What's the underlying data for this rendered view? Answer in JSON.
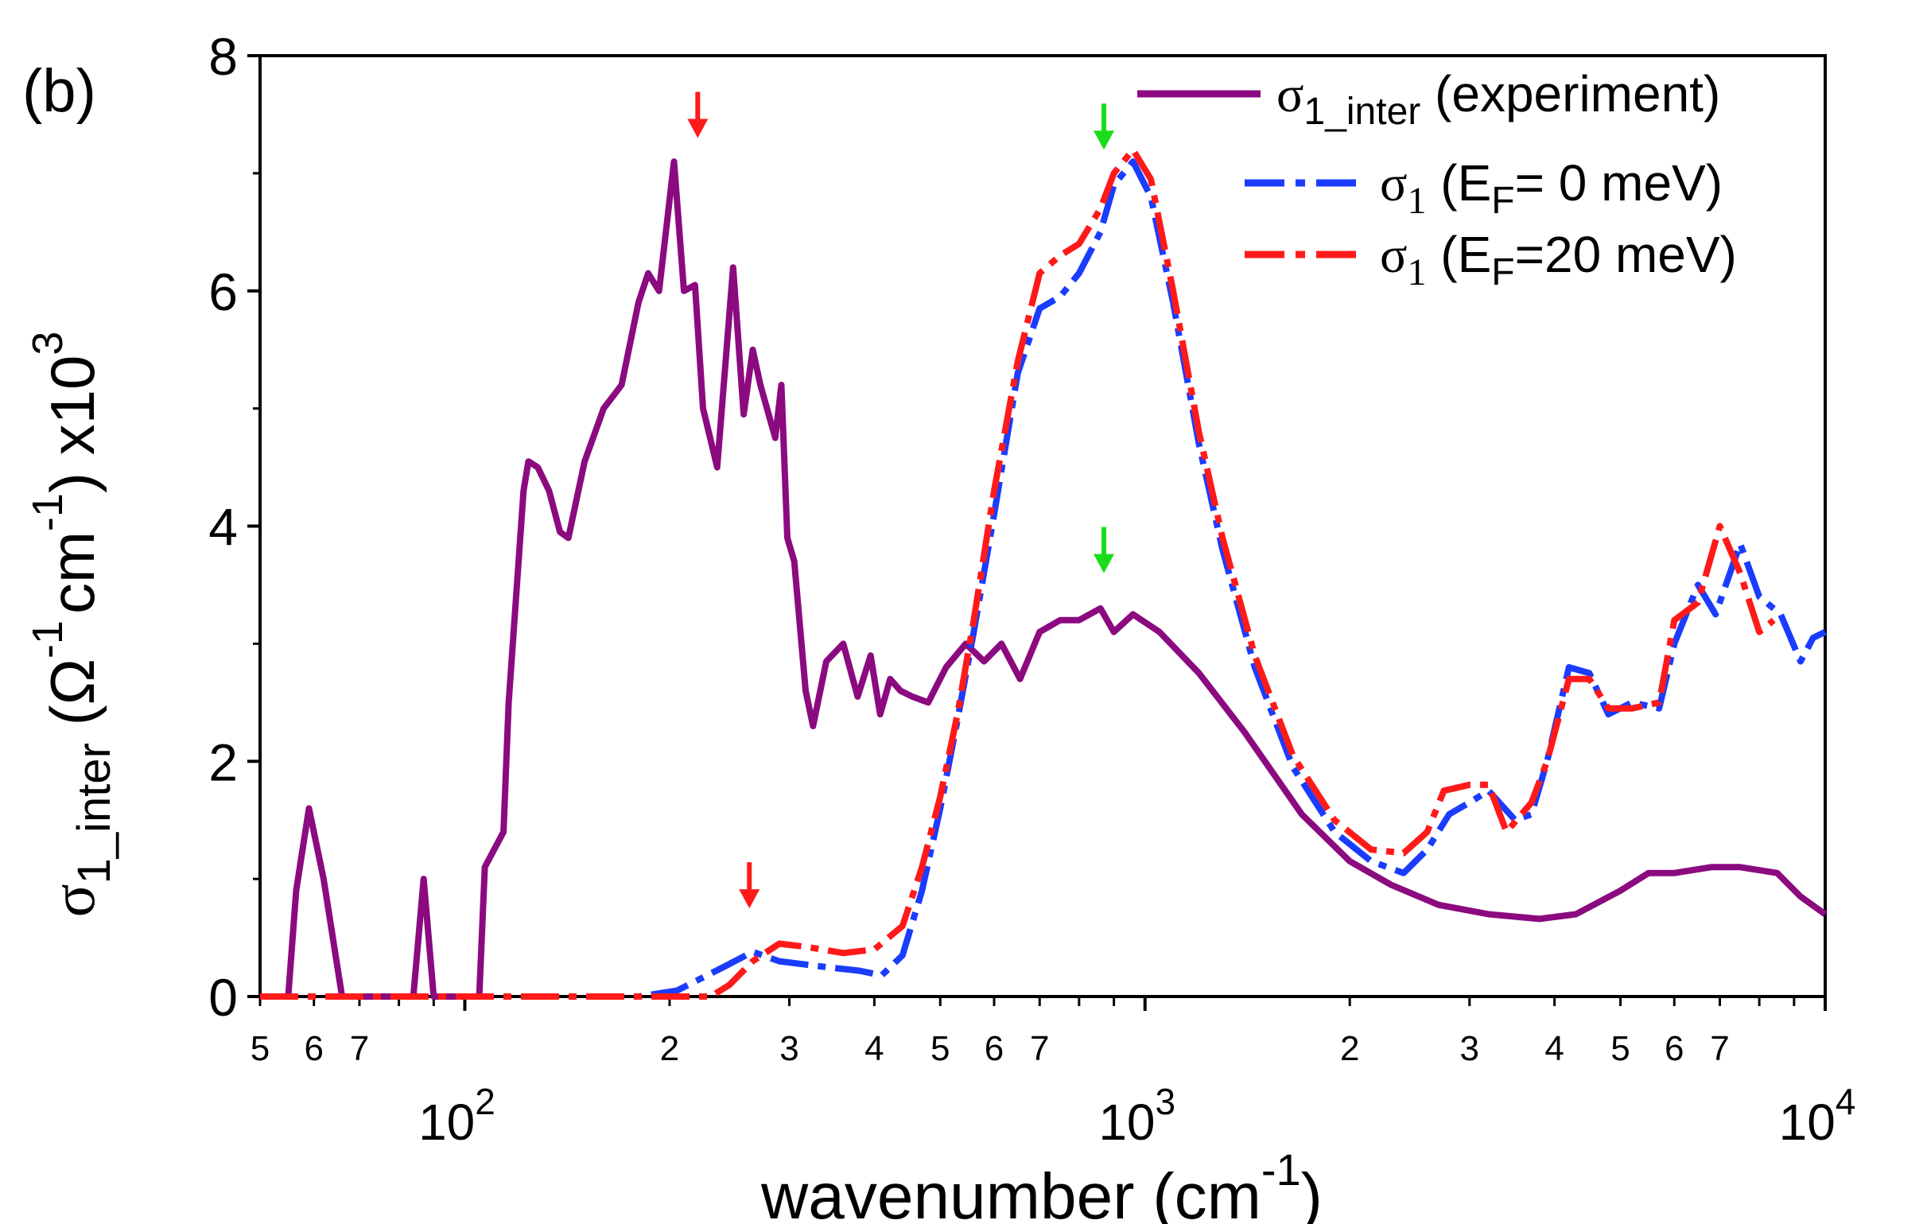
{
  "panel_label": "(b)",
  "chart_data": {
    "type": "line",
    "xscale": "log",
    "xlim": [
      50,
      10000
    ],
    "ylim": [
      0,
      8
    ],
    "grid": false,
    "legend_position": "top-right",
    "xlabel": {
      "main": "wavenumber (cm",
      "sup": "-1",
      "close": ")"
    },
    "ylabel": {
      "sigma": "σ",
      "sub": "1_inter",
      "open": " (Ω",
      "sup1": "-1",
      "cm": "cm",
      "sup2": "-1",
      "close": ") x10",
      "sup3": "3"
    },
    "yticks": [
      0,
      2,
      4,
      6,
      8
    ],
    "x_decade_ticks": [
      {
        "value": 100,
        "base": "10",
        "exp": "2"
      },
      {
        "value": 1000,
        "base": "10",
        "exp": "3"
      },
      {
        "value": 10000,
        "base": "10",
        "exp": "4"
      }
    ],
    "x_minor_ticks": [
      {
        "value": 50,
        "label": "5"
      },
      {
        "value": 60,
        "label": "6"
      },
      {
        "value": 70,
        "label": "7"
      },
      {
        "value": 80,
        "label": ""
      },
      {
        "value": 90,
        "label": ""
      },
      {
        "value": 200,
        "label": "2"
      },
      {
        "value": 300,
        "label": "3"
      },
      {
        "value": 400,
        "label": "4"
      },
      {
        "value": 500,
        "label": "5"
      },
      {
        "value": 600,
        "label": "6"
      },
      {
        "value": 700,
        "label": "7"
      },
      {
        "value": 800,
        "label": ""
      },
      {
        "value": 900,
        "label": ""
      },
      {
        "value": 2000,
        "label": "2"
      },
      {
        "value": 3000,
        "label": "3"
      },
      {
        "value": 4000,
        "label": "4"
      },
      {
        "value": 5000,
        "label": "5"
      },
      {
        "value": 6000,
        "label": "6"
      },
      {
        "value": 7000,
        "label": "7"
      },
      {
        "value": 8000,
        "label": ""
      },
      {
        "value": 9000,
        "label": ""
      }
    ],
    "legend": [
      {
        "key": "experiment",
        "sigma": "σ",
        "sub": "1_inter",
        "text": " (experiment)"
      },
      {
        "key": "ef0",
        "sigma": "σ",
        "sub": "1",
        "text1": " (E",
        "subF": "F",
        "text2": "=  0 meV)"
      },
      {
        "key": "ef20",
        "sigma": "σ",
        "sub": "1",
        "text1": " (E",
        "subF": "F",
        "text2": "=20 meV)"
      }
    ],
    "series": [
      {
        "name": "σ1_inter (experiment)",
        "color": "#8b0a80",
        "style": "solid",
        "points": [
          [
            50,
            0
          ],
          [
            55,
            0
          ],
          [
            56.5,
            0.9
          ],
          [
            59,
            1.6
          ],
          [
            62,
            1.0
          ],
          [
            66,
            0
          ],
          [
            80,
            0
          ],
          [
            84,
            0
          ],
          [
            87,
            1.0
          ],
          [
            90,
            0
          ],
          [
            100,
            0
          ],
          [
            105,
            0
          ],
          [
            107,
            1.1
          ],
          [
            114,
            1.4
          ],
          [
            116,
            2.5
          ],
          [
            122,
            4.3
          ],
          [
            124,
            4.55
          ],
          [
            128,
            4.5
          ],
          [
            133,
            4.3
          ],
          [
            138,
            3.95
          ],
          [
            142,
            3.9
          ],
          [
            150,
            4.55
          ],
          [
            160,
            5.0
          ],
          [
            170,
            5.2
          ],
          [
            180,
            5.9
          ],
          [
            186,
            6.15
          ],
          [
            193,
            6.0
          ],
          [
            203,
            7.1
          ],
          [
            210,
            6.0
          ],
          [
            218,
            6.05
          ],
          [
            224,
            5.0
          ],
          [
            235,
            4.5
          ],
          [
            248,
            6.2
          ],
          [
            257,
            4.95
          ],
          [
            265,
            5.5
          ],
          [
            272,
            5.2
          ],
          [
            286,
            4.75
          ],
          [
            292,
            5.2
          ],
          [
            298,
            3.9
          ],
          [
            305,
            3.7
          ],
          [
            317,
            2.6
          ],
          [
            325,
            2.3
          ],
          [
            340,
            2.85
          ],
          [
            360,
            3.0
          ],
          [
            378,
            2.55
          ],
          [
            395,
            2.9
          ],
          [
            408,
            2.4
          ],
          [
            422,
            2.7
          ],
          [
            437,
            2.6
          ],
          [
            455,
            2.55
          ],
          [
            480,
            2.5
          ],
          [
            510,
            2.8
          ],
          [
            545,
            3.0
          ],
          [
            580,
            2.85
          ],
          [
            615,
            3.0
          ],
          [
            655,
            2.7
          ],
          [
            700,
            3.1
          ],
          [
            750,
            3.2
          ],
          [
            800,
            3.2
          ],
          [
            860,
            3.3
          ],
          [
            900,
            3.1
          ],
          [
            960,
            3.25
          ],
          [
            1050,
            3.1
          ],
          [
            1200,
            2.75
          ],
          [
            1400,
            2.25
          ],
          [
            1700,
            1.55
          ],
          [
            2000,
            1.15
          ],
          [
            2300,
            0.95
          ],
          [
            2700,
            0.78
          ],
          [
            3200,
            0.7
          ],
          [
            3800,
            0.66
          ],
          [
            4300,
            0.7
          ],
          [
            5000,
            0.9
          ],
          [
            5500,
            1.05
          ],
          [
            6000,
            1.05
          ],
          [
            6800,
            1.1
          ],
          [
            7500,
            1.1
          ],
          [
            8500,
            1.05
          ],
          [
            9200,
            0.85
          ],
          [
            10000,
            0.7
          ]
        ]
      },
      {
        "name": "σ1 (EF= 0 meV)",
        "color": "#1a3cff",
        "style": "dashed",
        "points": [
          [
            50,
            0
          ],
          [
            180,
            0
          ],
          [
            205,
            0.05
          ],
          [
            240,
            0.25
          ],
          [
            265,
            0.38
          ],
          [
            290,
            0.3
          ],
          [
            340,
            0.25
          ],
          [
            380,
            0.22
          ],
          [
            410,
            0.18
          ],
          [
            440,
            0.35
          ],
          [
            470,
            0.9
          ],
          [
            500,
            1.6
          ],
          [
            530,
            2.35
          ],
          [
            560,
            3.1
          ],
          [
            600,
            4.1
          ],
          [
            650,
            5.3
          ],
          [
            700,
            5.85
          ],
          [
            750,
            5.95
          ],
          [
            800,
            6.15
          ],
          [
            860,
            6.5
          ],
          [
            900,
            6.9
          ],
          [
            960,
            7.1
          ],
          [
            1020,
            6.8
          ],
          [
            1100,
            5.9
          ],
          [
            1200,
            4.7
          ],
          [
            1300,
            3.8
          ],
          [
            1450,
            2.8
          ],
          [
            1650,
            1.95
          ],
          [
            1900,
            1.4
          ],
          [
            2150,
            1.15
          ],
          [
            2400,
            1.05
          ],
          [
            2600,
            1.25
          ],
          [
            2800,
            1.55
          ],
          [
            3000,
            1.65
          ],
          [
            3200,
            1.75
          ],
          [
            3500,
            1.5
          ],
          [
            3700,
            1.55
          ],
          [
            3900,
            2.0
          ],
          [
            4200,
            2.8
          ],
          [
            4500,
            2.75
          ],
          [
            4800,
            2.4
          ],
          [
            5200,
            2.5
          ],
          [
            5700,
            2.45
          ],
          [
            6000,
            3.0
          ],
          [
            6500,
            3.5
          ],
          [
            6900,
            3.25
          ],
          [
            7500,
            3.85
          ],
          [
            8000,
            3.4
          ],
          [
            8600,
            3.25
          ],
          [
            9200,
            2.85
          ],
          [
            9600,
            3.05
          ],
          [
            10000,
            3.1
          ]
        ]
      },
      {
        "name": "σ1 (EF=20 meV)",
        "color": "#ff1a1a",
        "style": "dashed",
        "points": [
          [
            50,
            0
          ],
          [
            230,
            0
          ],
          [
            245,
            0.1
          ],
          [
            265,
            0.3
          ],
          [
            290,
            0.45
          ],
          [
            320,
            0.42
          ],
          [
            360,
            0.37
          ],
          [
            400,
            0.4
          ],
          [
            440,
            0.6
          ],
          [
            470,
            1.1
          ],
          [
            500,
            1.7
          ],
          [
            530,
            2.4
          ],
          [
            560,
            3.2
          ],
          [
            600,
            4.3
          ],
          [
            650,
            5.4
          ],
          [
            700,
            6.15
          ],
          [
            750,
            6.3
          ],
          [
            800,
            6.4
          ],
          [
            860,
            6.7
          ],
          [
            900,
            7.0
          ],
          [
            960,
            7.2
          ],
          [
            1020,
            6.95
          ],
          [
            1100,
            6.0
          ],
          [
            1200,
            4.8
          ],
          [
            1300,
            3.9
          ],
          [
            1450,
            2.9
          ],
          [
            1650,
            2.05
          ],
          [
            1900,
            1.5
          ],
          [
            2150,
            1.25
          ],
          [
            2400,
            1.22
          ],
          [
            2600,
            1.4
          ],
          [
            2750,
            1.75
          ],
          [
            3000,
            1.8
          ],
          [
            3200,
            1.8
          ],
          [
            3400,
            1.4
          ],
          [
            3700,
            1.65
          ],
          [
            3900,
            2.0
          ],
          [
            4200,
            2.7
          ],
          [
            4500,
            2.7
          ],
          [
            4800,
            2.45
          ],
          [
            5200,
            2.45
          ],
          [
            5700,
            2.5
          ],
          [
            6000,
            3.2
          ],
          [
            6500,
            3.35
          ],
          [
            7000,
            4.0
          ],
          [
            7500,
            3.6
          ],
          [
            8000,
            3.1
          ],
          [
            8400,
            3.2
          ]
        ]
      }
    ],
    "arrows": [
      {
        "color": "#ff1a1a",
        "x": 220,
        "y_tip": 7.3
      },
      {
        "color": "#1adc1a",
        "x": 870,
        "y_tip": 7.2
      },
      {
        "color": "#1adc1a",
        "x": 870,
        "y_tip": 3.6
      },
      {
        "color": "#ff1a1a",
        "x": 262,
        "y_tip": 0.75
      }
    ]
  }
}
